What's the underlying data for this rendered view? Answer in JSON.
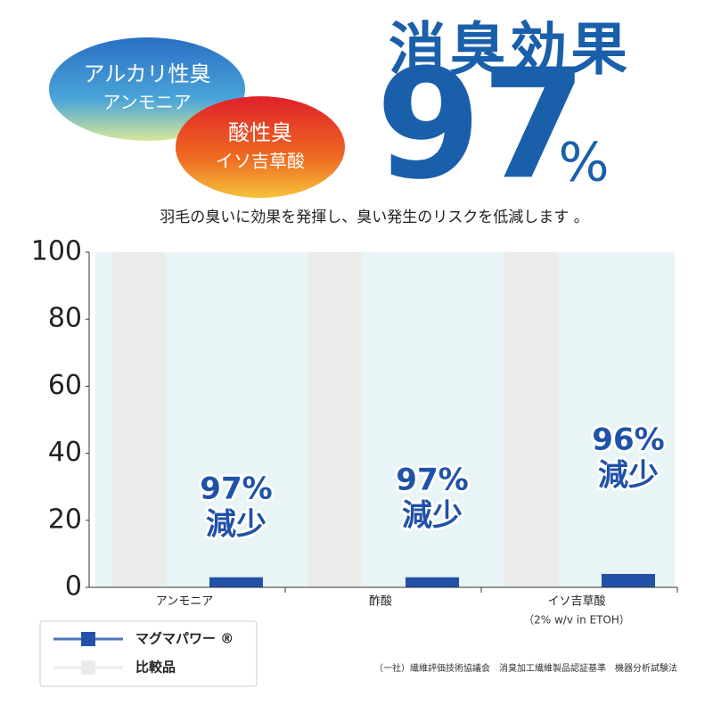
{
  "chart_data": {
    "type": "bar",
    "title": "消臭効果",
    "headline_value": "97",
    "headline_unit": "%",
    "badges": [
      {
        "title": "アルカリ性臭",
        "subtitle": "アンモニア"
      },
      {
        "title": "酸性臭",
        "subtitle": "イソ吉草酸"
      }
    ],
    "subtitle": "羽毛の臭いに効果を発揮し、臭い発生のリスクを低減します 。",
    "categories": [
      "アンモニア",
      "酢酸",
      "イソ吉草酸"
    ],
    "category_notes": [
      null,
      null,
      "（2% w/v in ETOH）"
    ],
    "series": [
      {
        "name": "比較品",
        "color": "#ebebeb",
        "values": [
          100,
          100,
          100
        ]
      },
      {
        "name": "マグマパワー ®",
        "color": "#2252a8",
        "values": [
          3,
          3,
          4
        ]
      }
    ],
    "annotations": [
      [
        "97%",
        "減少"
      ],
      [
        "97%",
        "減少"
      ],
      [
        "96%",
        "減少"
      ]
    ],
    "ylim": [
      0,
      100
    ],
    "yticks": [
      0,
      20,
      40,
      60,
      80,
      100
    ],
    "legend": "bottom-left",
    "footnote": "（一社）繊維評価技術協議会　消臭加工繊維製品認証基準　機器分析試験法"
  }
}
